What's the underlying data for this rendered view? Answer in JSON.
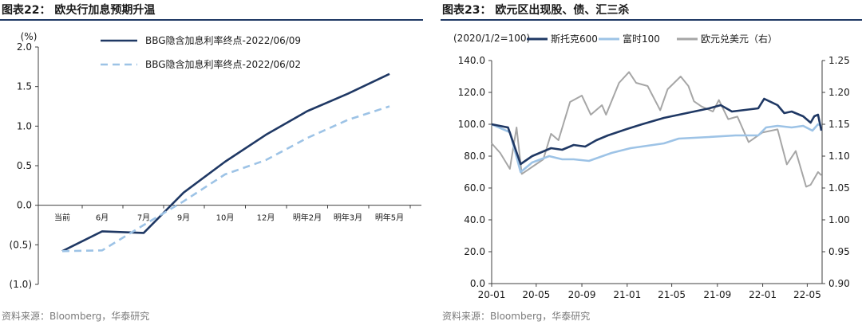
{
  "charts": [
    {
      "title": "图表22：  欧央行加息预期升温",
      "source": "资料来源：Bloomberg，华泰研究"
    },
    {
      "title": "图表23：  欧元区出现股、债、汇三杀",
      "source": "资料来源：Bloomberg，华泰研究"
    }
  ],
  "colors": {
    "navy": "#1f3864",
    "light_blue": "#9dc3e6",
    "gray": "#a6a6a6",
    "title_rule": "#1f3864"
  },
  "chart_data": [
    {
      "type": "line",
      "title": "",
      "y_unit": "(%)",
      "ylim": [
        -1.0,
        2.0
      ],
      "y_ticks": [
        "(1.0)",
        "(0.5)",
        "0.0",
        "0.5",
        "1.0",
        "1.5",
        "2.0"
      ],
      "y_tick_values": [
        -1.0,
        -0.5,
        0.0,
        0.5,
        1.0,
        1.5,
        2.0
      ],
      "categories": [
        "当前",
        "6月",
        "7月",
        "9月",
        "10月",
        "12月",
        "明年2月",
        "明年3月",
        "明年5月"
      ],
      "grid": false,
      "legend_position": "top-left",
      "series": [
        {
          "name": "BBG隐含加息利率终点-2022/06/09",
          "style": "solid",
          "color": "#1f3864",
          "values": [
            -0.58,
            -0.33,
            -0.35,
            0.16,
            0.55,
            0.89,
            1.19,
            1.41,
            1.66
          ]
        },
        {
          "name": "BBG隐含加息利率终点-2022/06/02",
          "style": "dashed",
          "color": "#9dc3e6",
          "values": [
            -0.58,
            -0.57,
            -0.25,
            0.05,
            0.39,
            0.57,
            0.85,
            1.08,
            1.25
          ]
        }
      ]
    },
    {
      "type": "line",
      "title": "",
      "note": "(2020/1/2=100)",
      "x_ticks": [
        "20-01",
        "20-05",
        "20-09",
        "21-01",
        "21-05",
        "21-09",
        "22-01",
        "22-05"
      ],
      "y_left": {
        "min": 0,
        "max": 140,
        "ticks": [
          "0.0",
          "20.0",
          "40.0",
          "60.0",
          "80.0",
          "100.0",
          "120.0",
          "140.0"
        ]
      },
      "y_right": {
        "min": 0.9,
        "max": 1.25,
        "ticks": [
          "0.90",
          "0.95",
          "1.00",
          "1.05",
          "1.10",
          "1.15",
          "1.20",
          "1.25"
        ],
        "label": "右"
      },
      "grid": false,
      "legend_position": "top",
      "series": [
        {
          "name": "斯托克600",
          "axis": "left",
          "color": "#1f3864",
          "points": [
            [
              "2020-01-02",
              100
            ],
            [
              "2020-02-15",
              98
            ],
            [
              "2020-03-20",
              75
            ],
            [
              "2020-04-20",
              80
            ],
            [
              "2020-06-10",
              85
            ],
            [
              "2020-07-10",
              84
            ],
            [
              "2020-08-10",
              87
            ],
            [
              "2020-09-10",
              86
            ],
            [
              "2020-10-10",
              90
            ],
            [
              "2020-11-10",
              93
            ],
            [
              "2020-12-31",
              97
            ],
            [
              "2021-02-10",
              100
            ],
            [
              "2021-04-10",
              104
            ],
            [
              "2021-06-10",
              107
            ],
            [
              "2021-08-10",
              110
            ],
            [
              "2021-09-10",
              112
            ],
            [
              "2021-10-10",
              108
            ],
            [
              "2021-12-20",
              110
            ],
            [
              "2022-01-05",
              116
            ],
            [
              "2022-02-10",
              112
            ],
            [
              "2022-02-28",
              107
            ],
            [
              "2022-03-20",
              108
            ],
            [
              "2022-04-20",
              105
            ],
            [
              "2022-05-10",
              101
            ],
            [
              "2022-05-20",
              105
            ],
            [
              "2022-05-30",
              106
            ],
            [
              "2022-06-08",
              96
            ]
          ]
        },
        {
          "name": "富时100",
          "axis": "left",
          "color": "#9dc3e6",
          "points": [
            [
              "2020-01-02",
              100
            ],
            [
              "2020-02-20",
              95
            ],
            [
              "2020-03-20",
              70
            ],
            [
              "2020-04-20",
              76
            ],
            [
              "2020-06-05",
              80
            ],
            [
              "2020-07-10",
              78
            ],
            [
              "2020-08-10",
              78
            ],
            [
              "2020-09-20",
              77
            ],
            [
              "2020-11-20",
              82
            ],
            [
              "2021-01-10",
              85
            ],
            [
              "2021-04-10",
              88
            ],
            [
              "2021-05-20",
              91
            ],
            [
              "2021-08-10",
              92
            ],
            [
              "2021-10-20",
              93
            ],
            [
              "2021-12-20",
              93
            ],
            [
              "2022-01-10",
              98
            ],
            [
              "2022-02-10",
              99
            ],
            [
              "2022-03-20",
              98
            ],
            [
              "2022-04-20",
              99
            ],
            [
              "2022-05-15",
              96
            ],
            [
              "2022-05-30",
              100
            ],
            [
              "2022-06-08",
              99
            ]
          ]
        },
        {
          "name": "欧元兑美元（右）",
          "axis": "right",
          "color": "#a6a6a6",
          "points": [
            [
              "2020-01-02",
              1.12
            ],
            [
              "2020-01-25",
              1.105
            ],
            [
              "2020-02-20",
              1.08
            ],
            [
              "2020-03-09",
              1.145
            ],
            [
              "2020-03-23",
              1.072
            ],
            [
              "2020-04-25",
              1.085
            ],
            [
              "2020-05-20",
              1.095
            ],
            [
              "2020-06-10",
              1.135
            ],
            [
              "2020-06-30",
              1.125
            ],
            [
              "2020-07-31",
              1.185
            ],
            [
              "2020-09-01",
              1.195
            ],
            [
              "2020-09-25",
              1.165
            ],
            [
              "2020-10-25",
              1.18
            ],
            [
              "2020-11-05",
              1.165
            ],
            [
              "2020-12-10",
              1.215
            ],
            [
              "2021-01-06",
              1.232
            ],
            [
              "2021-01-25",
              1.215
            ],
            [
              "2021-02-25",
              1.21
            ],
            [
              "2021-03-31",
              1.172
            ],
            [
              "2021-04-20",
              1.205
            ],
            [
              "2021-05-25",
              1.225
            ],
            [
              "2021-06-15",
              1.21
            ],
            [
              "2021-06-30",
              1.186
            ],
            [
              "2021-07-20",
              1.178
            ],
            [
              "2021-08-20",
              1.17
            ],
            [
              "2021-09-05",
              1.188
            ],
            [
              "2021-09-30",
              1.158
            ],
            [
              "2021-10-25",
              1.162
            ],
            [
              "2021-11-24",
              1.122
            ],
            [
              "2021-12-31",
              1.137
            ],
            [
              "2022-02-10",
              1.142
            ],
            [
              "2022-03-07",
              1.087
            ],
            [
              "2022-03-31",
              1.108
            ],
            [
              "2022-04-28",
              1.052
            ],
            [
              "2022-05-10",
              1.055
            ],
            [
              "2022-05-30",
              1.075
            ],
            [
              "2022-06-08",
              1.07
            ]
          ]
        }
      ]
    }
  ]
}
